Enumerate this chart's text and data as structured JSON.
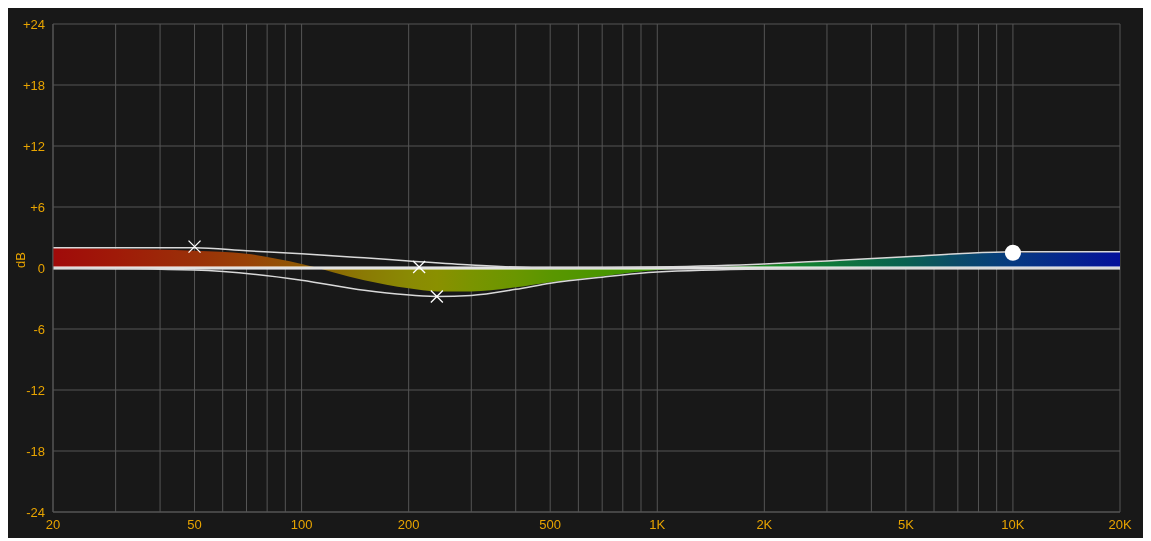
{
  "chart_data": {
    "type": "line",
    "ylabel": "dB",
    "log": "x",
    "grid": true,
    "xlim": [
      20,
      20000
    ],
    "ylim": [
      -24,
      24
    ],
    "xticks": [
      20,
      {
        "value": 30,
        "label": null
      },
      {
        "value": 40,
        "label": null
      },
      50,
      {
        "value": 60,
        "label": null
      },
      {
        "value": 70,
        "label": null
      },
      {
        "value": 80,
        "label": null
      },
      {
        "value": 90,
        "label": null
      },
      100,
      200,
      {
        "value": 300,
        "label": null
      },
      {
        "value": 400,
        "label": null
      },
      500,
      {
        "value": 600,
        "label": null
      },
      {
        "value": 700,
        "label": null
      },
      {
        "value": 800,
        "label": null
      },
      {
        "value": 900,
        "label": null
      },
      {
        "value": 1000,
        "label": "1K"
      },
      {
        "value": 2000,
        "label": "2K"
      },
      {
        "value": 3000,
        "label": null
      },
      {
        "value": 4000,
        "label": null
      },
      {
        "value": 5000,
        "label": "5K"
      },
      {
        "value": 6000,
        "label": null
      },
      {
        "value": 7000,
        "label": null
      },
      {
        "value": 8000,
        "label": null
      },
      {
        "value": 9000,
        "label": null
      },
      {
        "value": 10000,
        "label": "10K"
      },
      {
        "value": 20000,
        "label": "20K"
      }
    ],
    "yticks": [
      {
        "value": 24,
        "label": "+24"
      },
      {
        "value": 18,
        "label": "+18"
      },
      {
        "value": 12,
        "label": "+12"
      },
      {
        "value": 6,
        "label": "+6"
      },
      0,
      -6,
      -12,
      -18,
      -24
    ],
    "ref_lines": [
      {
        "axis": "y",
        "value": 0,
        "color": "#ffffff"
      }
    ],
    "series": [
      {
        "type": "area",
        "x": [
          20,
          30,
          50,
          70,
          100,
          150,
          200,
          240,
          300,
          400,
          500,
          700,
          1000,
          1500,
          2000,
          3000,
          5000,
          7000,
          10000,
          20000
        ],
        "values": [
          2.0,
          1.9,
          1.7,
          1.4,
          0.4,
          -1.2,
          -2.0,
          -2.3,
          -2.3,
          -1.9,
          -1.4,
          -0.8,
          -0.2,
          0.1,
          0.3,
          0.7,
          1.1,
          1.4,
          1.5,
          1.6
        ],
        "colors": [
          "#a00a0a",
          "#a01a08",
          "#9a3008",
          "#9a4206",
          "#8f5a04",
          "#8a7a04",
          "#8a8a04",
          "#8a9000",
          "#7a9400",
          "#6a9600",
          "#5a9600",
          "#4a9600",
          "#3a9400",
          "#2a9010",
          "#1a8a20",
          "#0f7a38",
          "#0a6050",
          "#0a4a68",
          "#063a80",
          "#04109a"
        ]
      },
      {
        "color": "#d9d9d9",
        "x": [
          20,
          50,
          70,
          100,
          150,
          200,
          300,
          500,
          1000,
          20000
        ],
        "values": [
          2.0,
          2.0,
          1.7,
          1.4,
          1.0,
          0.7,
          0.3,
          0,
          0,
          0
        ]
      },
      {
        "color": "#d9d9d9",
        "x": [
          20,
          50,
          100,
          150,
          240,
          300,
          400,
          500,
          700,
          1000,
          2000,
          5000,
          20000
        ],
        "values": [
          0,
          -0.2,
          -1.2,
          -2.2,
          -2.8,
          -2.7,
          -2.1,
          -1.5,
          -0.9,
          -0.4,
          -0.1,
          0,
          0
        ]
      },
      {
        "color": "#d9d9d9",
        "x": [
          20,
          500,
          1000,
          2000,
          3000,
          5000,
          7000,
          10000,
          20000
        ],
        "values": [
          0,
          0,
          0.1,
          0.4,
          0.7,
          1.1,
          1.4,
          1.6,
          1.6
        ]
      },
      {
        "type": "scatter",
        "marker": "cross",
        "color": "#ffffff",
        "x": [
          50,
          214,
          240
        ],
        "values": [
          2.1,
          0.1,
          -2.8
        ]
      },
      {
        "type": "scatter",
        "marker": "circle",
        "color": "#ffffff",
        "x": [
          10000
        ],
        "values": [
          1.5
        ]
      }
    ]
  }
}
